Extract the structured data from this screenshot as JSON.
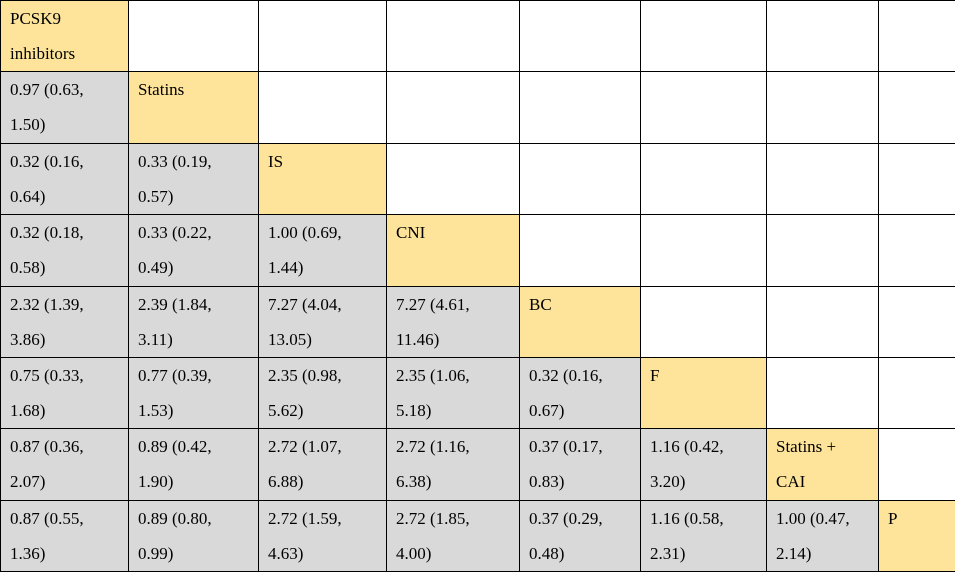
{
  "treatments": [
    "PCSK9 inhibitors",
    "Statins",
    "IS",
    "CNI",
    "BC",
    "F",
    "Statins + CAI",
    "P"
  ],
  "diagonal_labels": [
    [
      "PCSK9",
      "inhibitors"
    ],
    [
      "Statins"
    ],
    [
      "IS"
    ],
    [
      "CNI"
    ],
    [
      "BC"
    ],
    [
      "F"
    ],
    [
      "Statins +",
      "CAI"
    ],
    [
      "P"
    ]
  ],
  "cells": [
    [],
    [
      [
        "0.97 (0.63,",
        "1.50)"
      ]
    ],
    [
      [
        "0.32 (0.16,",
        "0.64)"
      ],
      [
        "0.33 (0.19,",
        "0.57)"
      ]
    ],
    [
      [
        "0.32 (0.18,",
        "0.58)"
      ],
      [
        "0.33 (0.22,",
        "0.49)"
      ],
      [
        "1.00 (0.69,",
        "1.44)"
      ]
    ],
    [
      [
        "2.32 (1.39,",
        "3.86)"
      ],
      [
        "2.39 (1.84,",
        "3.11)"
      ],
      [
        "7.27 (4.04,",
        "13.05)"
      ],
      [
        "7.27 (4.61,",
        "11.46)"
      ]
    ],
    [
      [
        "0.75 (0.33,",
        "1.68)"
      ],
      [
        "0.77 (0.39,",
        "1.53)"
      ],
      [
        "2.35 (0.98,",
        "5.62)"
      ],
      [
        "2.35 (1.06,",
        "5.18)"
      ],
      [
        "0.32 (0.16,",
        "0.67)"
      ]
    ],
    [
      [
        "0.87 (0.36,",
        "2.07)"
      ],
      [
        "0.89 (0.42,",
        "1.90)"
      ],
      [
        "2.72 (1.07,",
        "6.88)"
      ],
      [
        "2.72 (1.16,",
        "6.38)"
      ],
      [
        "0.37 (0.17,",
        "0.83)"
      ],
      [
        "1.16 (0.42,",
        "3.20)"
      ]
    ],
    [
      [
        "0.87 (0.55,",
        "1.36)"
      ],
      [
        "0.89 (0.80,",
        "0.99)"
      ],
      [
        "2.72 (1.59,",
        "4.63)"
      ],
      [
        "2.72 (1.85,",
        "4.00)"
      ],
      [
        "0.37 (0.29,",
        "0.48)"
      ],
      [
        "1.16 (0.58,",
        "2.31)"
      ],
      [
        "1.00 (0.47,",
        "2.14)"
      ]
    ]
  ],
  "colors": {
    "diagonal_fill": "#fde49a",
    "value_fill": "#d9d9d9",
    "empty_fill": "#ffffff",
    "border": "#000000"
  }
}
